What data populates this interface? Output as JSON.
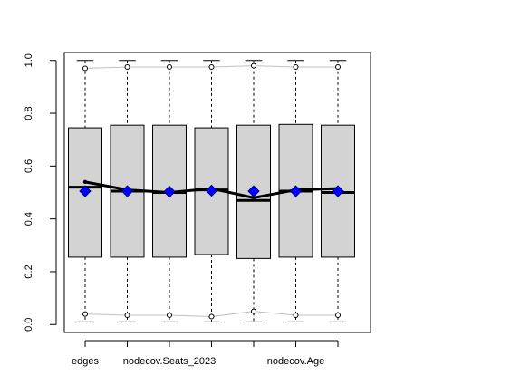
{
  "chart_data": {
    "type": "box",
    "title": "",
    "xlabel": "",
    "ylabel": "",
    "ylim": [
      -0.03,
      1.03
    ],
    "yticks": [
      0.0,
      0.2,
      0.4,
      0.6,
      0.8,
      1.0
    ],
    "ytick_labels": [
      "0.0",
      "0.2",
      "0.4",
      "0.6",
      "0.8",
      "1.0"
    ],
    "categories": [
      "edges",
      "",
      "nodecov.Seats_2023",
      "",
      "",
      "nodecov.Age",
      ""
    ],
    "boxes": [
      {
        "q1": 0.255,
        "median": 0.52,
        "q3": 0.745,
        "whisker_low": 0.01,
        "whisker_high": 1.0,
        "outlier_low": 0.04,
        "outlier_high": 0.97
      },
      {
        "q1": 0.255,
        "median": 0.505,
        "q3": 0.755,
        "whisker_low": 0.01,
        "whisker_high": 1.0,
        "outlier_low": 0.035,
        "outlier_high": 0.975
      },
      {
        "q1": 0.255,
        "median": 0.5,
        "q3": 0.755,
        "whisker_low": 0.01,
        "whisker_high": 1.0,
        "outlier_low": 0.035,
        "outlier_high": 0.975
      },
      {
        "q1": 0.265,
        "median": 0.51,
        "q3": 0.745,
        "whisker_low": 0.01,
        "whisker_high": 1.0,
        "outlier_low": 0.03,
        "outlier_high": 0.975
      },
      {
        "q1": 0.25,
        "median": 0.47,
        "q3": 0.755,
        "whisker_low": 0.01,
        "whisker_high": 1.0,
        "outlier_low": 0.05,
        "outlier_high": 0.98
      },
      {
        "q1": 0.255,
        "median": 0.505,
        "q3": 0.758,
        "whisker_low": 0.01,
        "whisker_high": 1.0,
        "outlier_low": 0.035,
        "outlier_high": 0.975
      },
      {
        "q1": 0.255,
        "median": 0.5,
        "q3": 0.755,
        "whisker_low": 0.01,
        "whisker_high": 1.0,
        "outlier_low": 0.035,
        "outlier_high": 0.975
      }
    ],
    "observed_line": [
      0.54,
      0.51,
      0.5,
      0.515,
      0.48,
      0.51,
      0.515
    ],
    "diamond_points": [
      0.505,
      0.505,
      0.503,
      0.507,
      0.505,
      0.505,
      0.505
    ],
    "colors": {
      "box_fill": "#d3d3d3",
      "diamond_fill": "#0000ff",
      "diamond_stroke": "#00008b",
      "grey_line": "#c0c0c0",
      "observed_line": "#000000"
    },
    "grid": false,
    "legend": "none"
  }
}
